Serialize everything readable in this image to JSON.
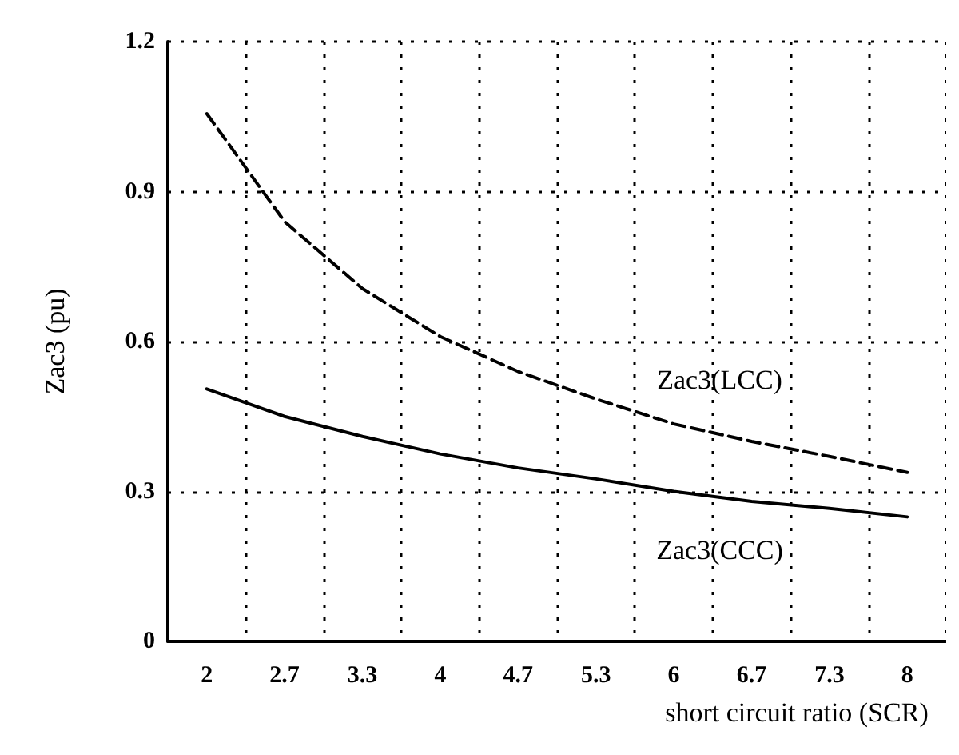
{
  "chart_data": {
    "type": "line",
    "xlabel": "short circuit ratio (SCR)",
    "ylabel": "Zac3 (pu)",
    "categories": [
      "2",
      "2.7",
      "3.3",
      "4",
      "4.7",
      "5.3",
      "6",
      "6.7",
      "7.3",
      "8"
    ],
    "series": [
      {
        "name": "Zac3(LCC)",
        "color": "#000000",
        "line_style": "dashed",
        "values": [
          1.056,
          0.84,
          0.706,
          0.61,
          0.54,
          0.485,
          0.435,
          0.4,
          0.37,
          0.338
        ]
      },
      {
        "name": "Zac3(CCC)",
        "color": "#000000",
        "line_style": "solid",
        "values": [
          0.505,
          0.45,
          0.41,
          0.375,
          0.347,
          0.325,
          0.3,
          0.28,
          0.266,
          0.249
        ]
      }
    ],
    "ylim": [
      0,
      1.2
    ],
    "yticks": [
      0,
      0.3,
      0.6,
      0.9,
      1.2
    ],
    "grid": true,
    "marker": "none",
    "legend": false
  }
}
